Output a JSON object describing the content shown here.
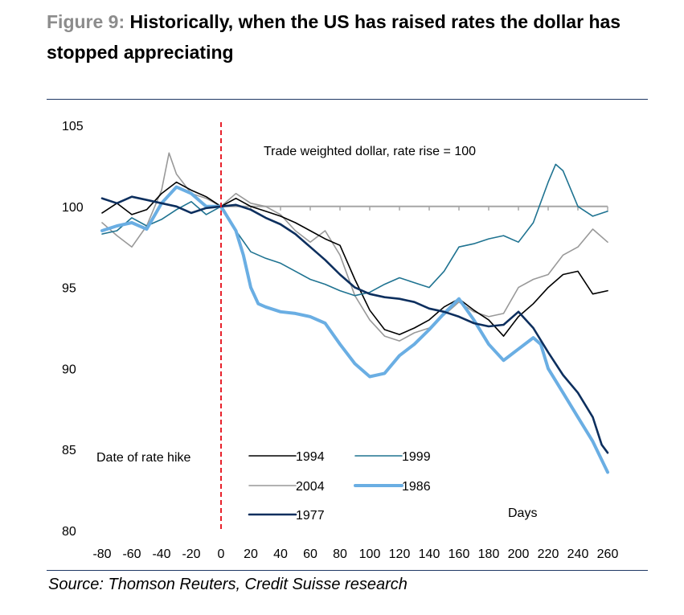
{
  "figure": {
    "number_label": "Figure 9:",
    "title": "Historically, when the US has raised rates the dollar has stopped appreciating",
    "source": "Source: Thomson Reuters, Credit Suisse research"
  },
  "chart_data": {
    "type": "line",
    "title": "Trade weighted dollar, rate rise = 100",
    "xlabel": "Days",
    "ylabel": "",
    "xlim": [
      -80,
      260
    ],
    "ylim": [
      80,
      105
    ],
    "xticks": [
      -80,
      -60,
      -40,
      -20,
      0,
      20,
      40,
      60,
      80,
      100,
      120,
      140,
      160,
      180,
      200,
      220,
      240,
      260
    ],
    "yticks": [
      80,
      85,
      90,
      95,
      100,
      105
    ],
    "grid": false,
    "legend_position": "bottom-center",
    "reference_line": {
      "y": 100,
      "color": "#a6a6a6"
    },
    "annotation": {
      "x": 0,
      "label": "Date of rate hike",
      "color": "#e8212b",
      "style": "dashed"
    },
    "series": [
      {
        "name": "1994",
        "color": "#000000",
        "width": 1.6,
        "x": [
          -80,
          -70,
          -60,
          -50,
          -40,
          -30,
          -20,
          -10,
          0,
          10,
          20,
          30,
          40,
          50,
          60,
          70,
          80,
          90,
          100,
          110,
          120,
          130,
          140,
          150,
          160,
          170,
          180,
          190,
          200,
          210,
          220,
          230,
          240,
          250,
          260
        ],
        "y": [
          99.6,
          100.2,
          99.5,
          99.8,
          100.8,
          101.5,
          101.0,
          100.6,
          100,
          100.5,
          100.0,
          99.7,
          99.4,
          99.0,
          98.5,
          98.0,
          97.6,
          95.5,
          93.6,
          92.4,
          92.1,
          92.5,
          93.0,
          93.8,
          94.3,
          93.6,
          93.0,
          92.0,
          93.2,
          94.0,
          95.0,
          95.8,
          96.0,
          94.6,
          94.8
        ]
      },
      {
        "name": "1999",
        "color": "#1f7391",
        "width": 1.6,
        "x": [
          -80,
          -70,
          -60,
          -50,
          -40,
          -30,
          -20,
          -10,
          0,
          10,
          20,
          30,
          40,
          50,
          60,
          70,
          80,
          90,
          100,
          110,
          120,
          130,
          140,
          150,
          160,
          170,
          180,
          190,
          200,
          210,
          220,
          225,
          230,
          240,
          250,
          260
        ],
        "y": [
          98.3,
          98.5,
          99.3,
          98.8,
          99.2,
          99.8,
          100.3,
          99.5,
          100,
          98.5,
          97.2,
          96.8,
          96.5,
          96.0,
          95.5,
          95.2,
          94.8,
          94.5,
          94.7,
          95.2,
          95.6,
          95.3,
          95.0,
          96.0,
          97.5,
          97.7,
          98.0,
          98.2,
          97.8,
          99.0,
          101.5,
          102.6,
          102.2,
          100.0,
          99.4,
          99.7
        ]
      },
      {
        "name": "2004",
        "color": "#999999",
        "width": 1.6,
        "x": [
          -80,
          -70,
          -60,
          -50,
          -40,
          -35,
          -30,
          -20,
          -10,
          0,
          10,
          20,
          30,
          40,
          50,
          60,
          70,
          80,
          90,
          100,
          110,
          120,
          130,
          140,
          150,
          160,
          170,
          180,
          190,
          200,
          210,
          220,
          230,
          240,
          250,
          260
        ],
        "y": [
          99.0,
          98.2,
          97.5,
          98.8,
          101.0,
          103.3,
          102.0,
          100.8,
          100.5,
          100,
          100.8,
          100.2,
          100.0,
          99.5,
          98.5,
          97.8,
          98.5,
          97.0,
          94.5,
          93.0,
          92.0,
          91.7,
          92.2,
          92.5,
          93.3,
          94.1,
          93.5,
          93.2,
          93.4,
          95.0,
          95.5,
          95.8,
          97.0,
          97.5,
          98.6,
          97.8
        ]
      },
      {
        "name": "1986",
        "color": "#6aaee3",
        "width": 4,
        "x": [
          -80,
          -70,
          -60,
          -50,
          -40,
          -30,
          -20,
          -10,
          0,
          10,
          15,
          20,
          25,
          30,
          40,
          50,
          60,
          70,
          80,
          90,
          100,
          110,
          120,
          130,
          140,
          150,
          160,
          170,
          180,
          190,
          200,
          210,
          215,
          220,
          230,
          240,
          250,
          260
        ],
        "y": [
          98.5,
          98.8,
          99.0,
          98.6,
          100.2,
          101.2,
          100.8,
          100.0,
          100,
          98.5,
          97.0,
          95.0,
          94.0,
          93.8,
          93.5,
          93.4,
          93.2,
          92.8,
          91.5,
          90.3,
          89.5,
          89.7,
          90.8,
          91.5,
          92.4,
          93.4,
          94.3,
          93.0,
          91.5,
          90.5,
          91.2,
          91.9,
          91.5,
          90.0,
          88.5,
          87.0,
          85.5,
          83.6
        ]
      },
      {
        "name": "1977",
        "color": "#0d2f5e",
        "width": 2.6,
        "x": [
          -80,
          -70,
          -60,
          -50,
          -40,
          -30,
          -20,
          -10,
          0,
          10,
          20,
          30,
          40,
          50,
          60,
          70,
          80,
          90,
          100,
          110,
          120,
          130,
          140,
          150,
          160,
          170,
          180,
          190,
          200,
          210,
          220,
          230,
          240,
          250,
          256,
          260
        ],
        "y": [
          100.5,
          100.2,
          100.6,
          100.4,
          100.2,
          100.0,
          99.6,
          99.9,
          100,
          100.1,
          99.8,
          99.3,
          98.9,
          98.3,
          97.5,
          96.7,
          95.8,
          95.0,
          94.6,
          94.4,
          94.3,
          94.1,
          93.7,
          93.5,
          93.2,
          92.8,
          92.6,
          92.7,
          93.5,
          92.5,
          91.0,
          89.6,
          88.5,
          87.0,
          85.3,
          84.8
        ]
      }
    ],
    "legend": [
      {
        "label": "1994"
      },
      {
        "label": "1999"
      },
      {
        "label": "2004"
      },
      {
        "label": "1986"
      },
      {
        "label": "1977"
      }
    ]
  }
}
